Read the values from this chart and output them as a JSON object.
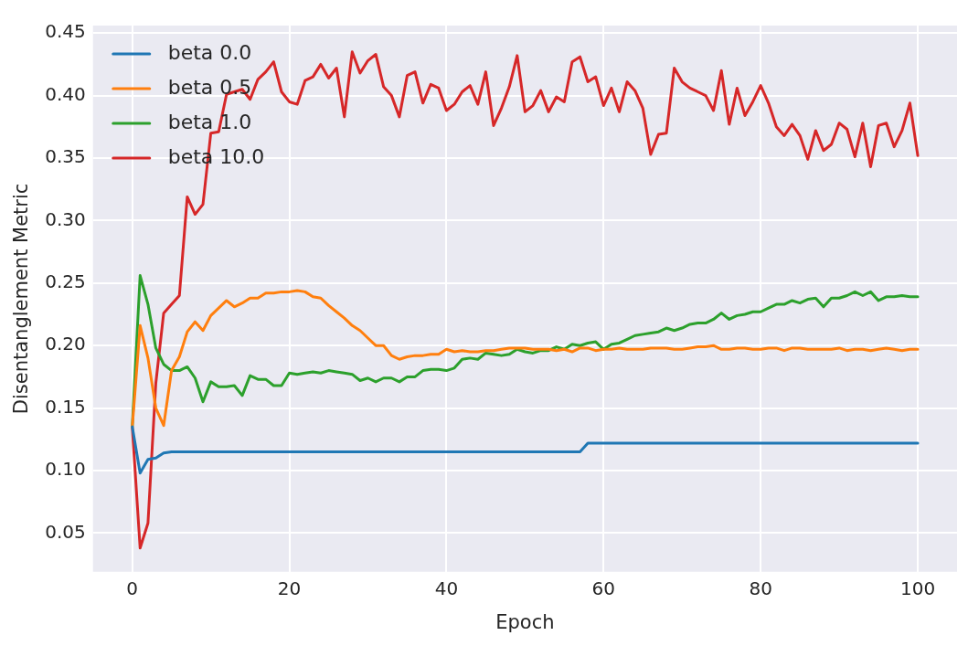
{
  "chart_data": {
    "type": "line",
    "xlabel": "Epoch",
    "ylabel": "Disentanglement Metric",
    "legend": "top left",
    "grid": true,
    "marker": "none",
    "line_style": "solid",
    "xlim": [
      -5,
      105
    ],
    "xticks": [
      0,
      20,
      40,
      60,
      80,
      100
    ],
    "ylim": [
      0.019,
      0.456
    ],
    "yticks": [
      0.05,
      {
        "value": 0.1,
        "label": "0.10"
      },
      0.15,
      {
        "value": 0.2,
        "label": "0.20"
      },
      0.25,
      {
        "value": 0.3,
        "label": "0.30"
      },
      0.35,
      {
        "value": 0.4,
        "label": "0.40"
      },
      0.45
    ],
    "x": [
      0,
      1,
      2,
      3,
      4,
      5,
      6,
      7,
      8,
      9,
      10,
      11,
      12,
      13,
      14,
      15,
      16,
      17,
      18,
      19,
      20,
      21,
      22,
      23,
      24,
      25,
      26,
      27,
      28,
      29,
      30,
      31,
      32,
      33,
      34,
      35,
      36,
      37,
      38,
      39,
      40,
      41,
      42,
      43,
      44,
      45,
      46,
      47,
      48,
      49,
      50,
      51,
      52,
      53,
      54,
      55,
      56,
      57,
      58,
      59,
      60,
      61,
      62,
      63,
      64,
      65,
      66,
      67,
      68,
      69,
      70,
      71,
      72,
      73,
      74,
      75,
      76,
      77,
      78,
      79,
      80,
      81,
      82,
      83,
      84,
      85,
      86,
      87,
      88,
      89,
      90,
      91,
      92,
      93,
      94,
      95,
      96,
      97,
      98,
      99,
      100
    ],
    "series": [
      {
        "name": "beta 0.0",
        "color": "#1f77b4",
        "x": [
          0,
          1,
          2,
          3,
          4,
          5,
          57,
          58,
          100
        ],
        "values": [
          0.135,
          0.098,
          0.109,
          0.11,
          0.114,
          0.115,
          0.115,
          0.122,
          0.122
        ]
      },
      {
        "name": "beta 0.5",
        "color": "#ff7f0e",
        "values": [
          0.135,
          0.216,
          0.19,
          0.15,
          0.136,
          0.18,
          0.191,
          0.211,
          0.219,
          0.212,
          0.224,
          0.23,
          0.236,
          0.231,
          0.234,
          0.238,
          0.238,
          0.242,
          0.242,
          0.243,
          0.243,
          0.244,
          0.243,
          0.239,
          0.238,
          0.232,
          0.227,
          0.222,
          0.216,
          0.212,
          0.206,
          0.2,
          0.2,
          0.192,
          0.189,
          0.191,
          0.192,
          0.192,
          0.193,
          0.193,
          0.197,
          0.195,
          0.196,
          0.195,
          0.195,
          0.196,
          0.196,
          0.197,
          0.198,
          0.198,
          0.198,
          0.197,
          0.197,
          0.197,
          0.196,
          0.197,
          0.195,
          0.198,
          0.198,
          0.196,
          0.197,
          0.197,
          0.198,
          0.197,
          0.197,
          0.197,
          0.198,
          0.198,
          0.198,
          0.197,
          0.197,
          0.198,
          0.199,
          0.199,
          0.2,
          0.197,
          0.197,
          0.198,
          0.198,
          0.197,
          0.197,
          0.198,
          0.198,
          0.196,
          0.198,
          0.198,
          0.197,
          0.197,
          0.197,
          0.197,
          0.198,
          0.196,
          0.197,
          0.197,
          0.196,
          0.197,
          0.198,
          0.197,
          0.196,
          0.197,
          0.197
        ]
      },
      {
        "name": "beta 1.0",
        "color": "#2ca02c",
        "values": [
          0.135,
          0.256,
          0.233,
          0.198,
          0.185,
          0.18,
          0.18,
          0.183,
          0.174,
          0.155,
          0.171,
          0.167,
          0.167,
          0.168,
          0.16,
          0.176,
          0.173,
          0.173,
          0.168,
          0.168,
          0.178,
          0.177,
          0.178,
          0.179,
          0.178,
          0.18,
          0.179,
          0.178,
          0.177,
          0.172,
          0.174,
          0.171,
          0.174,
          0.174,
          0.171,
          0.175,
          0.175,
          0.18,
          0.181,
          0.181,
          0.18,
          0.182,
          0.189,
          0.19,
          0.189,
          0.194,
          0.193,
          0.192,
          0.193,
          0.197,
          0.195,
          0.194,
          0.196,
          0.196,
          0.199,
          0.197,
          0.201,
          0.2,
          0.202,
          0.203,
          0.197,
          0.201,
          0.202,
          0.205,
          0.208,
          0.209,
          0.21,
          0.211,
          0.214,
          0.212,
          0.214,
          0.217,
          0.218,
          0.218,
          0.221,
          0.226,
          0.221,
          0.224,
          0.225,
          0.227,
          0.227,
          0.23,
          0.233,
          0.233,
          0.236,
          0.234,
          0.237,
          0.238,
          0.231,
          0.238,
          0.238,
          0.24,
          0.243,
          0.24,
          0.243,
          0.236,
          0.239,
          0.239,
          0.24,
          0.239,
          0.239
        ]
      },
      {
        "name": "beta 10.0",
        "color": "#d62728",
        "values": [
          0.135,
          0.038,
          0.058,
          0.17,
          0.226,
          0.233,
          0.24,
          0.319,
          0.305,
          0.313,
          0.37,
          0.371,
          0.401,
          0.403,
          0.405,
          0.397,
          0.413,
          0.419,
          0.427,
          0.403,
          0.395,
          0.393,
          0.412,
          0.415,
          0.425,
          0.414,
          0.422,
          0.383,
          0.435,
          0.418,
          0.428,
          0.433,
          0.407,
          0.4,
          0.383,
          0.416,
          0.419,
          0.394,
          0.409,
          0.406,
          0.388,
          0.393,
          0.403,
          0.408,
          0.393,
          0.419,
          0.376,
          0.39,
          0.407,
          0.432,
          0.387,
          0.392,
          0.404,
          0.387,
          0.399,
          0.395,
          0.427,
          0.431,
          0.411,
          0.415,
          0.392,
          0.406,
          0.387,
          0.411,
          0.404,
          0.39,
          0.353,
          0.369,
          0.37,
          0.422,
          0.411,
          0.406,
          0.403,
          0.4,
          0.388,
          0.42,
          0.377,
          0.406,
          0.384,
          0.395,
          0.408,
          0.394,
          0.375,
          0.368,
          0.377,
          0.368,
          0.349,
          0.372,
          0.356,
          0.361,
          0.378,
          0.373,
          0.351,
          0.378,
          0.343,
          0.376,
          0.378,
          0.359,
          0.372,
          0.394,
          0.352
        ]
      }
    ]
  }
}
